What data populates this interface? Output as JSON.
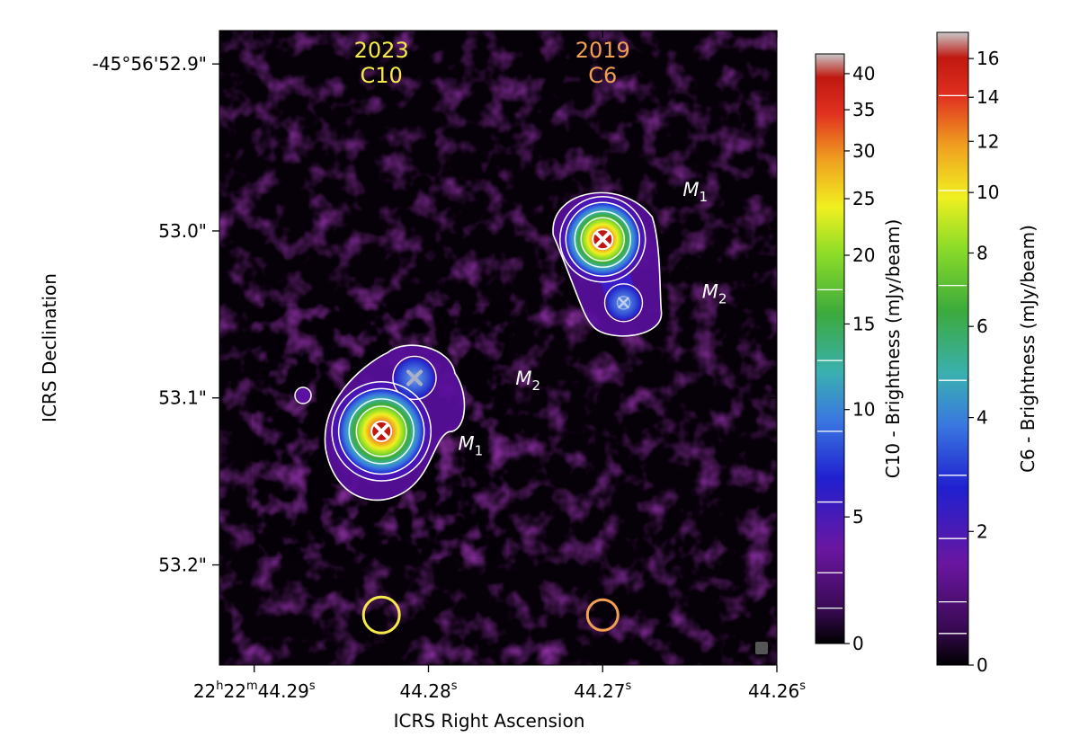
{
  "chart_data": {
    "type": "heatmap",
    "title": "",
    "xlabel": "ICRS Right Ascension",
    "ylabel": "ICRS Declination",
    "x_ticks": [
      {
        "h": "22",
        "m": "22",
        "s": "44.29",
        "value": 44.29
      },
      {
        "s": "44.28",
        "value": 44.28
      },
      {
        "s": "44.27",
        "value": 44.27
      },
      {
        "s": "44.26",
        "value": 44.26
      }
    ],
    "x_range_s": [
      44.292,
      44.26
    ],
    "y_ticks": [
      {
        "label": "-45°56'52.9\"",
        "value": 52.9
      },
      {
        "label": "53.0\"",
        "value": 53.0
      },
      {
        "label": "53.1\"",
        "value": 53.1
      },
      {
        "label": "53.2\"",
        "value": 53.2
      }
    ],
    "y_range_arcsec": [
      52.88,
      53.26
    ],
    "epochs": [
      {
        "year": "2023",
        "config": "C10",
        "color": "#f5e84a",
        "beam_ra": 44.2827,
        "beam_dec": 53.23
      },
      {
        "year": "2019",
        "config": "C6",
        "color": "#f0a050",
        "beam_ra": 44.27,
        "beam_dec": 53.23
      }
    ],
    "sources": [
      {
        "epoch": "2023",
        "components": [
          {
            "name": "M1",
            "ra": 44.2827,
            "dec": 53.12,
            "marker": "white-x-on-red",
            "label_ra": 44.2783,
            "label_dec": 53.131
          },
          {
            "name": "M2",
            "ra": 44.2808,
            "dec": 53.088,
            "marker": "grey-x",
            "label_ra": 44.275,
            "label_dec": 53.092
          }
        ],
        "peak_mJy_beam": 40
      },
      {
        "epoch": "2019",
        "components": [
          {
            "name": "M1",
            "ra": 44.27,
            "dec": 53.005,
            "marker": "white-x-on-red",
            "label_ra": 44.2654,
            "label_dec": 52.979
          },
          {
            "name": "M2",
            "ra": 44.2688,
            "dec": 53.043,
            "marker": "blue-x",
            "label_ra": 44.2643,
            "label_dec": 53.04
          }
        ],
        "peak_mJy_beam": 16.5
      }
    ],
    "colorbars": [
      {
        "label": "C10 - Brightness (mJy/beam)",
        "ticks": [
          0,
          5,
          10,
          15,
          20,
          25,
          30,
          35,
          40
        ],
        "range": [
          0,
          43
        ],
        "scale": "asinh"
      },
      {
        "label": "C6 - Brightness (mJy/beam)",
        "ticks": [
          0,
          2,
          4,
          6,
          8,
          10,
          12,
          14,
          16
        ],
        "range": [
          0,
          17.5
        ],
        "scale": "asinh"
      }
    ],
    "colormap": [
      "#000000",
      "#3a0a55",
      "#6a16a0",
      "#2020d0",
      "#3a78e0",
      "#3ab0b0",
      "#3caa3c",
      "#8cdc28",
      "#f0f020",
      "#f0a020",
      "#e03020",
      "#c01810",
      "#c8c8c8"
    ]
  }
}
